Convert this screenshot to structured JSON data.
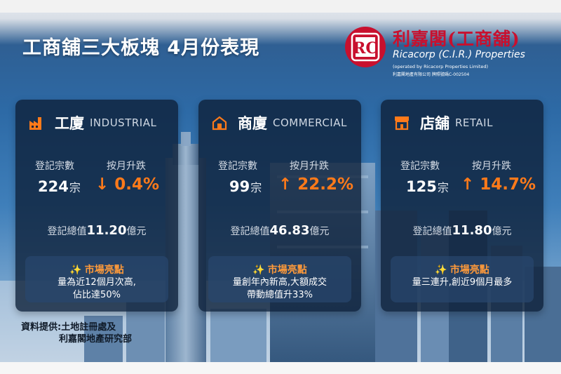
{
  "title": "工商舖三大板塊 4月份表現",
  "logo": {
    "name_cn": "利嘉閣(工商舖)",
    "name_en": "Ricacorp (C.I.R.) Properties",
    "operated_by": "(operated by Ricacorp Properties Limited)",
    "license": "利嘉閣地產有限公司 牌照號碼C-002504"
  },
  "colors": {
    "accent": "#ff7a1a",
    "highlight_title": "#ff9a3a",
    "brand_red": "#c8102e",
    "card_bg": "#0e203a"
  },
  "labels": {
    "count": "登記宗數",
    "change": "按月升跌",
    "total": "登記總值",
    "highlight": "市場亮點"
  },
  "cards": [
    {
      "icon": "factory-icon",
      "name_cn": "工廈",
      "name_en": "INDUSTRIAL",
      "count": "224",
      "count_unit": "宗",
      "arrow": "↓",
      "change": "0.4%",
      "total": "11.20",
      "total_unit": "億元",
      "highlight_lines": [
        "量為近12個月次高,",
        "佔比達50%"
      ]
    },
    {
      "icon": "office-building-icon",
      "name_cn": "商廈",
      "name_en": "COMMERCIAL",
      "count": "99",
      "count_unit": "宗",
      "arrow": "↑",
      "change": "22.2%",
      "total": "46.83",
      "total_unit": "億元",
      "highlight_lines": [
        "量創年內新高,大額成交",
        "帶動總值升33%"
      ]
    },
    {
      "icon": "storefront-icon",
      "name_cn": "店舖",
      "name_en": "RETAIL",
      "count": "125",
      "count_unit": "宗",
      "arrow": "↑",
      "change": "14.7%",
      "total": "11.80",
      "total_unit": "億元",
      "highlight_lines": [
        "量三連升,創近9個月最多"
      ]
    }
  ],
  "source": {
    "line1": "資料提供:土地註冊處及",
    "line2": "利嘉閣地產研究部"
  }
}
